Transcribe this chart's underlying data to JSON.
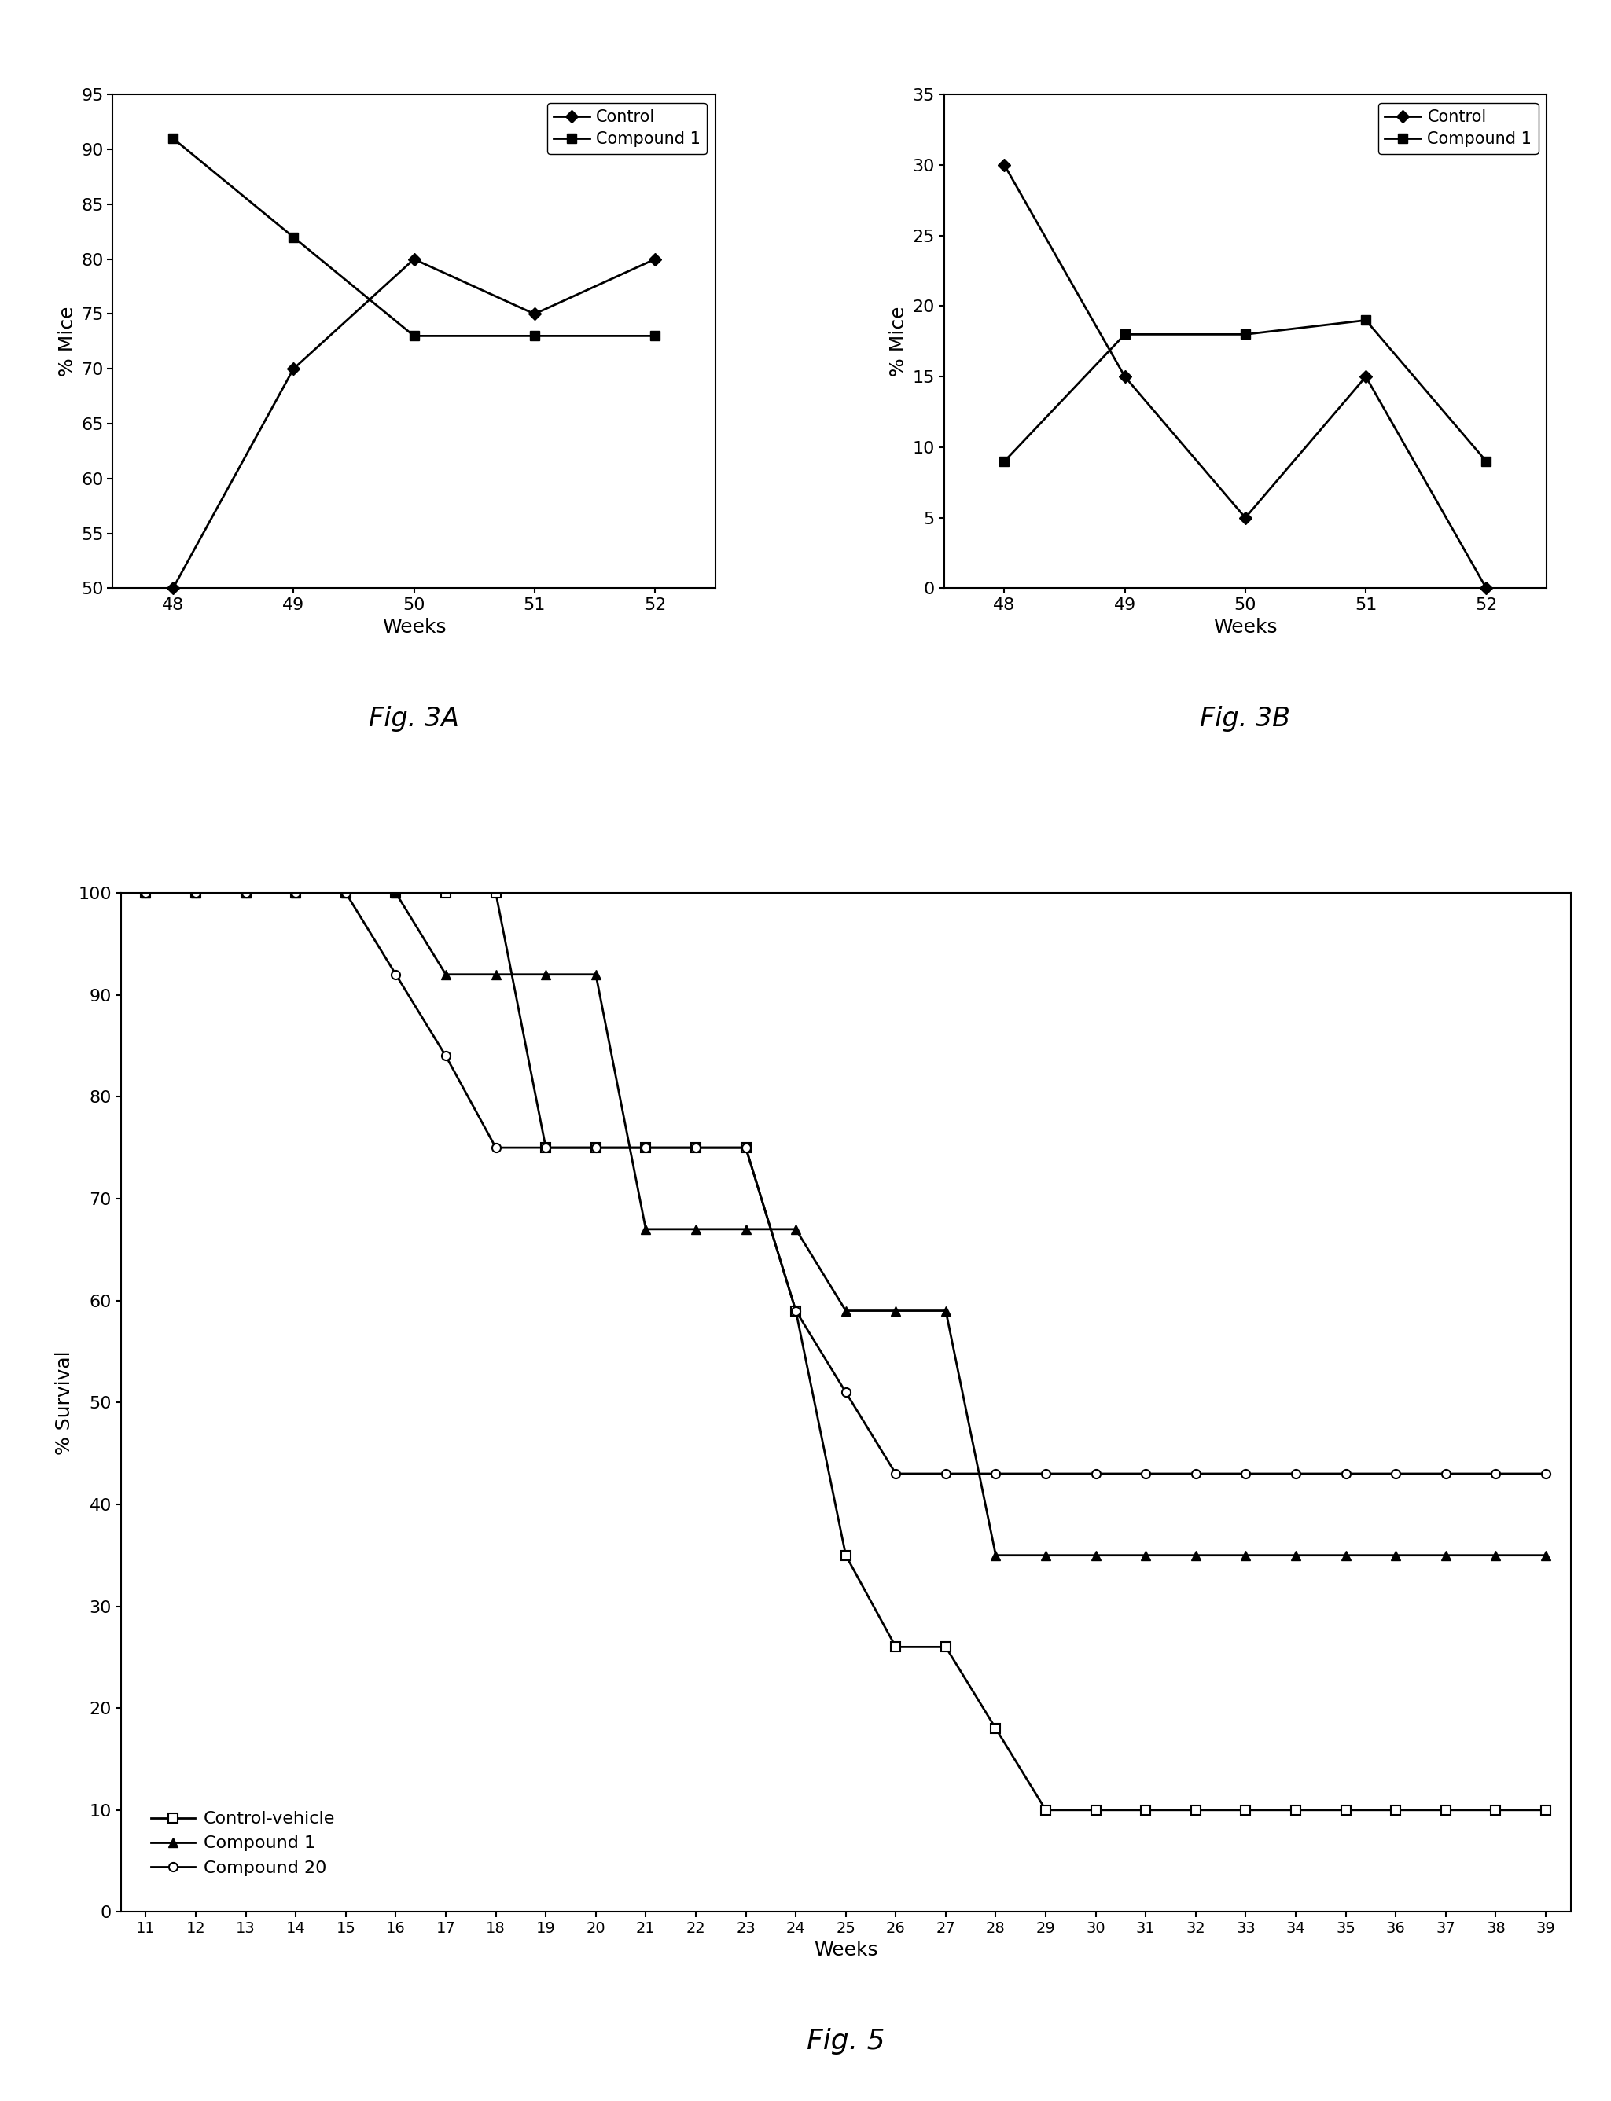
{
  "fig3a": {
    "weeks": [
      48,
      49,
      50,
      51,
      52
    ],
    "control": [
      50,
      70,
      80,
      75,
      80
    ],
    "compound1": [
      91,
      82,
      73,
      73,
      73
    ],
    "ylim": [
      50,
      95
    ],
    "yticks": [
      50,
      55,
      60,
      65,
      70,
      75,
      80,
      85,
      90,
      95
    ],
    "ylabel": "% Mice",
    "xlabel": "Weeks",
    "title": "Fig. 3A"
  },
  "fig3b": {
    "weeks": [
      48,
      49,
      50,
      51,
      52
    ],
    "control": [
      30,
      15,
      5,
      15,
      0
    ],
    "compound1": [
      9,
      18,
      18,
      19,
      9
    ],
    "ylim": [
      0,
      35
    ],
    "yticks": [
      0,
      5,
      10,
      15,
      20,
      25,
      30,
      35
    ],
    "ylabel": "% Mice",
    "xlabel": "Weeks",
    "title": "Fig. 3B"
  },
  "fig5": {
    "weeks": [
      11,
      12,
      13,
      14,
      15,
      16,
      17,
      18,
      19,
      20,
      21,
      22,
      23,
      24,
      25,
      26,
      27,
      28,
      29,
      30,
      31,
      32,
      33,
      34,
      35,
      36,
      37,
      38,
      39
    ],
    "control_vehicle": [
      100,
      100,
      100,
      100,
      100,
      100,
      100,
      100,
      75,
      75,
      75,
      75,
      75,
      59,
      35,
      26,
      26,
      18,
      10,
      10,
      10,
      10,
      10,
      10,
      10,
      10,
      10,
      10,
      10
    ],
    "compound1": [
      100,
      100,
      100,
      100,
      100,
      100,
      92,
      92,
      92,
      92,
      67,
      67,
      67,
      67,
      59,
      59,
      59,
      35,
      35,
      35,
      35,
      35,
      35,
      35,
      35,
      35,
      35,
      35,
      35
    ],
    "compound20": [
      100,
      100,
      100,
      100,
      100,
      92,
      84,
      75,
      75,
      75,
      75,
      75,
      75,
      59,
      51,
      43,
      43,
      43,
      43,
      43,
      43,
      43,
      43,
      43,
      43,
      43,
      43,
      43,
      43
    ],
    "ylim": [
      0,
      100
    ],
    "yticks": [
      0,
      10,
      20,
      30,
      40,
      50,
      60,
      70,
      80,
      90,
      100
    ],
    "ylabel": "% Survival",
    "xlabel": "Weeks",
    "title": "Fig. 5",
    "xticks": [
      11,
      12,
      13,
      14,
      15,
      16,
      17,
      18,
      19,
      20,
      21,
      22,
      23,
      24,
      25,
      26,
      27,
      28,
      29,
      30,
      31,
      32,
      33,
      34,
      35,
      36,
      37,
      38,
      39
    ]
  }
}
